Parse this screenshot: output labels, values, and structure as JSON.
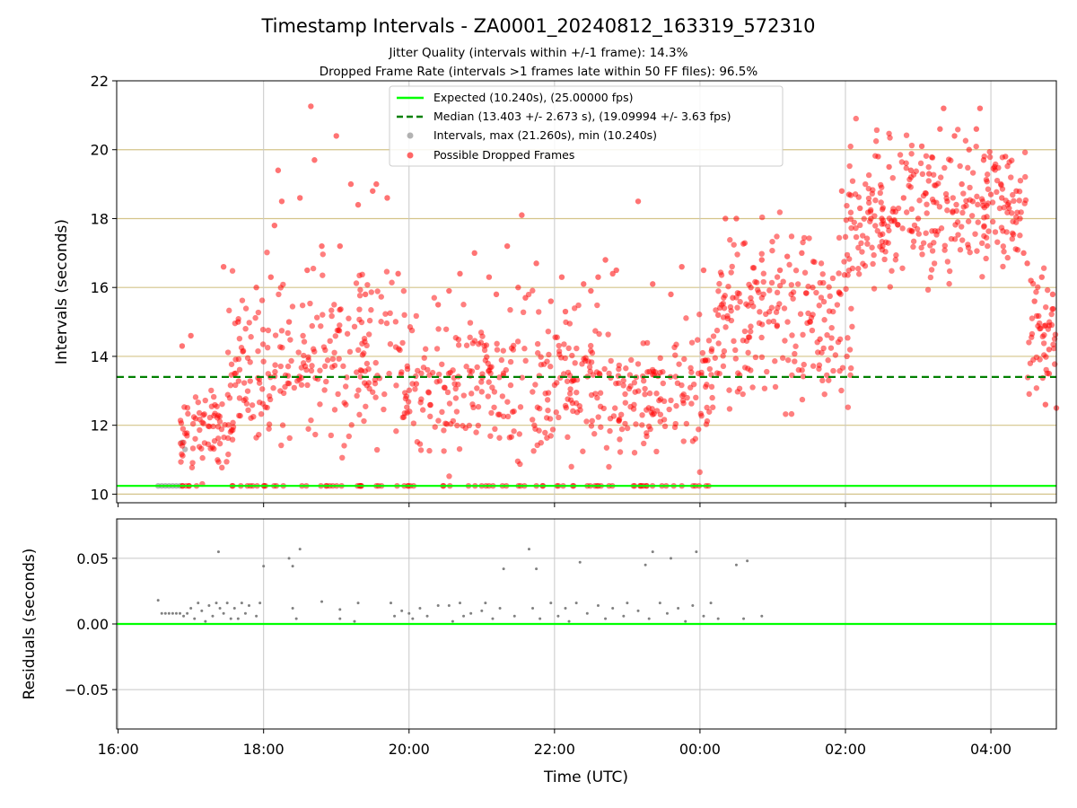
{
  "chart_data": [
    {
      "type": "scatter",
      "title": "Timestamp Intervals - ZA0001_20240812_163319_572310",
      "subtitle_lines": [
        "Jitter Quality (intervals within +/-1 frame): 14.3%",
        "Dropped Frame Rate (intervals >1 frames late within 50 FF files): 96.5%"
      ],
      "ylabel": "Intervals (seconds)",
      "xlabel": "",
      "x_unit": "hours since 16:00 UTC",
      "xlim": [
        -0.02,
        12.9
      ],
      "ylim": [
        9.75,
        22
      ],
      "yticks": [
        10,
        12,
        14,
        16,
        18,
        20,
        22
      ],
      "y_gridlines": [
        10,
        12,
        14,
        16,
        18,
        20
      ],
      "x_gridlines": [
        2,
        4,
        6,
        8,
        10,
        12
      ],
      "expected_interval": 10.24,
      "median_interval": 13.403,
      "legend": {
        "position": "upper center",
        "entries": [
          {
            "label": "Expected (10.240s), (25.00000 fps)",
            "style": "line",
            "color": "#00ff00"
          },
          {
            "label": "Median (13.403 +/- 2.673 s), (19.09994 +/- 3.63 fps)",
            "style": "dashed",
            "color": "#008000"
          },
          {
            "label": "Intervals, max (21.260s), min (10.240s)",
            "style": "marker",
            "color": "#808080"
          },
          {
            "label": "Possible Dropped Frames",
            "style": "marker",
            "color": "#ff0000"
          }
        ]
      },
      "series": [
        {
          "name": "Intervals, max (21.260s), min (10.240s)",
          "color": "#808080",
          "note": "normal intervals near the expected value",
          "points": [
            [
              0.55,
              10.24
            ],
            [
              0.6,
              10.24
            ],
            [
              0.65,
              10.24
            ],
            [
              0.7,
              10.24
            ],
            [
              0.75,
              10.24
            ],
            [
              0.8,
              10.24
            ],
            [
              0.85,
              10.24
            ],
            [
              0.88,
              11.5
            ],
            [
              0.92,
              11.3
            ]
          ]
        },
        {
          "name": "Possible Dropped Frames",
          "color": "#ff0000",
          "points": [
            [
              0.88,
              14.3
            ],
            [
              1.0,
              14.6
            ],
            [
              1.45,
              16.6
            ],
            [
              1.6,
              13.5
            ],
            [
              1.65,
              15.0
            ],
            [
              1.9,
              16.0
            ],
            [
              2.1,
              16.3
            ],
            [
              2.15,
              17.8
            ],
            [
              2.2,
              19.4
            ],
            [
              2.25,
              18.5
            ],
            [
              2.35,
              15.0
            ],
            [
              2.6,
              16.5
            ],
            [
              2.65,
              21.26
            ],
            [
              2.7,
              19.7
            ],
            [
              2.5,
              18.6
            ],
            [
              2.8,
              17.2
            ],
            [
              3.0,
              20.4
            ],
            [
              3.05,
              17.2
            ],
            [
              3.2,
              19.0
            ],
            [
              3.3,
              18.4
            ],
            [
              3.4,
              15.8
            ],
            [
              3.5,
              18.8
            ],
            [
              3.55,
              19.0
            ],
            [
              3.7,
              18.6
            ],
            [
              3.85,
              16.4
            ],
            [
              4.1,
              13.2
            ],
            [
              4.4,
              15.5
            ],
            [
              4.55,
              15.9
            ],
            [
              4.7,
              16.4
            ],
            [
              4.9,
              17.0
            ],
            [
              5.1,
              16.3
            ],
            [
              5.2,
              15.8
            ],
            [
              5.35,
              17.2
            ],
            [
              5.5,
              16.0
            ],
            [
              5.55,
              18.1
            ],
            [
              5.6,
              15.7
            ],
            [
              5.75,
              16.7
            ],
            [
              5.95,
              15.6
            ],
            [
              6.1,
              16.3
            ],
            [
              6.15,
              15.3
            ],
            [
              6.4,
              16.1
            ],
            [
              6.5,
              15.9
            ],
            [
              6.6,
              16.3
            ],
            [
              6.7,
              16.8
            ],
            [
              6.8,
              16.4
            ],
            [
              6.85,
              16.5
            ],
            [
              7.15,
              18.5
            ],
            [
              7.35,
              16.1
            ],
            [
              7.6,
              15.8
            ],
            [
              7.75,
              16.6
            ],
            [
              8.05,
              16.5
            ],
            [
              8.25,
              15.2
            ],
            [
              8.35,
              18.0
            ],
            [
              8.5,
              18.0
            ],
            [
              8.45,
              15.7
            ],
            [
              8.7,
              16.0
            ],
            [
              8.85,
              16.8
            ],
            [
              9.1,
              16.5
            ],
            [
              9.2,
              16.9
            ],
            [
              9.4,
              17.0
            ],
            [
              9.55,
              16.0
            ],
            [
              9.65,
              14.5
            ],
            [
              9.95,
              18.8
            ],
            [
              10.05,
              18.7
            ],
            [
              10.2,
              18.3
            ],
            [
              10.35,
              18.0
            ],
            [
              10.45,
              19.8
            ],
            [
              10.5,
              18.0
            ],
            [
              10.6,
              19.5
            ],
            [
              10.65,
              18.2
            ],
            [
              10.8,
              18.6
            ],
            [
              10.9,
              19.4
            ],
            [
              11.0,
              18.0
            ],
            [
              11.05,
              20.1
            ],
            [
              11.15,
              19.3
            ],
            [
              11.3,
              20.6
            ],
            [
              11.35,
              21.2
            ],
            [
              11.4,
              18.5
            ],
            [
              11.5,
              20.4
            ],
            [
              11.6,
              19.0
            ],
            [
              11.7,
              20.0
            ],
            [
              11.75,
              18.5
            ],
            [
              11.8,
              20.6
            ],
            [
              11.85,
              21.2
            ],
            [
              11.9,
              19.7
            ],
            [
              12.0,
              18.7
            ],
            [
              12.05,
              19.5
            ],
            [
              12.15,
              18.6
            ],
            [
              12.2,
              19.8
            ],
            [
              12.25,
              18.3
            ],
            [
              12.35,
              18.8
            ],
            [
              12.4,
              18.0
            ],
            [
              12.45,
              17.0
            ],
            [
              12.5,
              16.7
            ],
            [
              12.55,
              16.2
            ],
            [
              12.6,
              15.6
            ],
            [
              12.7,
              16.3
            ],
            [
              12.75,
              14.9
            ],
            [
              12.8,
              14.2
            ],
            [
              12.85,
              15.8
            ],
            [
              12.9,
              12.5
            ],
            [
              12.75,
              12.6
            ],
            [
              12.8,
              13.5
            ]
          ],
          "density_summary": [
            {
              "x_range": [
                0.85,
                1.6
              ],
              "y_range": [
                10.2,
                13.5
              ],
              "note": "dense floor cluster near expected value"
            },
            {
              "x_range": [
                1.5,
                3.9
              ],
              "y_range": [
                10.2,
                17.5
              ],
              "note": "broad scatter centred ~12.5-14.5"
            },
            {
              "x_range": [
                3.9,
                6.7
              ],
              "y_range": [
                10.2,
                16.5
              ],
              "note": "dense band ~11.5-14"
            },
            {
              "x_range": [
                6.7,
                8.2
              ],
              "y_range": [
                10.2,
                15.5
              ],
              "note": "dense band ~11.5-14 with floor points at 10.24"
            },
            {
              "x_range": [
                8.2,
                10.1
              ],
              "y_range": [
                11.5,
                18.8
              ],
              "note": "rising band from ~13 to ~16"
            },
            {
              "x_range": [
                10.0,
                12.5
              ],
              "y_range": [
                15.3,
                21.2
              ],
              "note": "dense band ~17.5-19"
            },
            {
              "x_range": [
                12.5,
                12.9
              ],
              "y_range": [
                12.5,
                17.0
              ],
              "note": "falling tail"
            }
          ]
        }
      ]
    },
    {
      "type": "scatter",
      "title": "",
      "xlabel": "Time (UTC)",
      "ylabel": "Residuals (seconds)",
      "xlim": [
        -0.02,
        12.9
      ],
      "ylim": [
        -0.08,
        0.08
      ],
      "yticks": [
        -0.05,
        0.0,
        0.05
      ],
      "ytick_labels": [
        "−0.05",
        "0.00",
        "0.05"
      ],
      "xticks": [
        0,
        2,
        4,
        6,
        8,
        10,
        12
      ],
      "xtick_labels": [
        "16:00",
        "18:00",
        "20:00",
        "22:00",
        "00:00",
        "02:00",
        "04:00"
      ],
      "zero_line_color": "#00ff00",
      "series": [
        {
          "name": "Residuals",
          "color": "#808080",
          "points": [
            [
              0.55,
              0.018
            ],
            [
              0.6,
              0.008
            ],
            [
              0.65,
              0.008
            ],
            [
              0.7,
              0.008
            ],
            [
              0.75,
              0.008
            ],
            [
              0.8,
              0.008
            ],
            [
              0.85,
              0.008
            ],
            [
              0.9,
              0.006
            ],
            [
              0.95,
              0.008
            ],
            [
              1.0,
              0.012
            ],
            [
              1.05,
              0.004
            ],
            [
              1.1,
              0.016
            ],
            [
              1.15,
              0.01
            ],
            [
              1.2,
              0.002
            ],
            [
              1.25,
              0.014
            ],
            [
              1.3,
              0.006
            ],
            [
              1.35,
              0.016
            ],
            [
              1.4,
              0.012
            ],
            [
              1.45,
              0.008
            ],
            [
              1.5,
              0.016
            ],
            [
              1.55,
              0.004
            ],
            [
              1.38,
              0.055
            ],
            [
              1.6,
              0.012
            ],
            [
              1.65,
              0.004
            ],
            [
              1.7,
              0.016
            ],
            [
              1.75,
              0.008
            ],
            [
              1.8,
              0.014
            ],
            [
              1.9,
              0.006
            ],
            [
              1.95,
              0.016
            ],
            [
              2.0,
              0.044
            ],
            [
              2.35,
              0.05
            ],
            [
              2.4,
              0.044
            ],
            [
              2.5,
              0.057
            ],
            [
              2.45,
              0.004
            ],
            [
              2.4,
              0.012
            ],
            [
              2.8,
              0.017
            ],
            [
              3.05,
              0.004
            ],
            [
              3.05,
              0.011
            ],
            [
              3.25,
              0.002
            ],
            [
              3.3,
              0.016
            ],
            [
              3.75,
              0.016
            ],
            [
              3.8,
              0.006
            ],
            [
              3.9,
              0.01
            ],
            [
              4.0,
              0.008
            ],
            [
              4.05,
              0.004
            ],
            [
              4.15,
              0.012
            ],
            [
              4.25,
              0.006
            ],
            [
              4.4,
              0.014
            ],
            [
              4.55,
              0.014
            ],
            [
              4.6,
              0.002
            ],
            [
              4.7,
              0.016
            ],
            [
              4.75,
              0.006
            ],
            [
              4.85,
              0.008
            ],
            [
              5.0,
              0.01
            ],
            [
              5.05,
              0.016
            ],
            [
              5.15,
              0.004
            ],
            [
              5.25,
              0.012
            ],
            [
              5.3,
              0.042
            ],
            [
              5.45,
              0.006
            ],
            [
              5.65,
              0.057
            ],
            [
              5.75,
              0.042
            ],
            [
              5.7,
              0.012
            ],
            [
              5.8,
              0.004
            ],
            [
              5.95,
              0.016
            ],
            [
              6.05,
              0.006
            ],
            [
              6.15,
              0.012
            ],
            [
              6.2,
              0.002
            ],
            [
              6.3,
              0.016
            ],
            [
              6.35,
              0.047
            ],
            [
              6.45,
              0.008
            ],
            [
              6.6,
              0.014
            ],
            [
              6.7,
              0.004
            ],
            [
              6.8,
              0.012
            ],
            [
              6.95,
              0.006
            ],
            [
              7.0,
              0.016
            ],
            [
              7.15,
              0.01
            ],
            [
              7.25,
              0.045
            ],
            [
              7.35,
              0.055
            ],
            [
              7.3,
              0.004
            ],
            [
              7.45,
              0.016
            ],
            [
              7.6,
              0.05
            ],
            [
              7.55,
              0.008
            ],
            [
              7.7,
              0.012
            ],
            [
              7.8,
              0.002
            ],
            [
              7.95,
              0.055
            ],
            [
              7.9,
              0.014
            ],
            [
              8.05,
              0.006
            ],
            [
              8.15,
              0.016
            ],
            [
              8.25,
              0.004
            ],
            [
              8.5,
              0.045
            ],
            [
              8.6,
              0.004
            ],
            [
              8.65,
              0.048
            ],
            [
              8.85,
              0.006
            ]
          ]
        }
      ]
    }
  ],
  "tick_labels": {
    "top_y": [
      "10",
      "12",
      "14",
      "16",
      "18",
      "20",
      "22"
    ],
    "bottom_y": [
      "−0.05",
      "0.00",
      "0.05"
    ],
    "x": [
      "16:00",
      "18:00",
      "20:00",
      "22:00",
      "00:00",
      "02:00",
      "04:00"
    ]
  }
}
